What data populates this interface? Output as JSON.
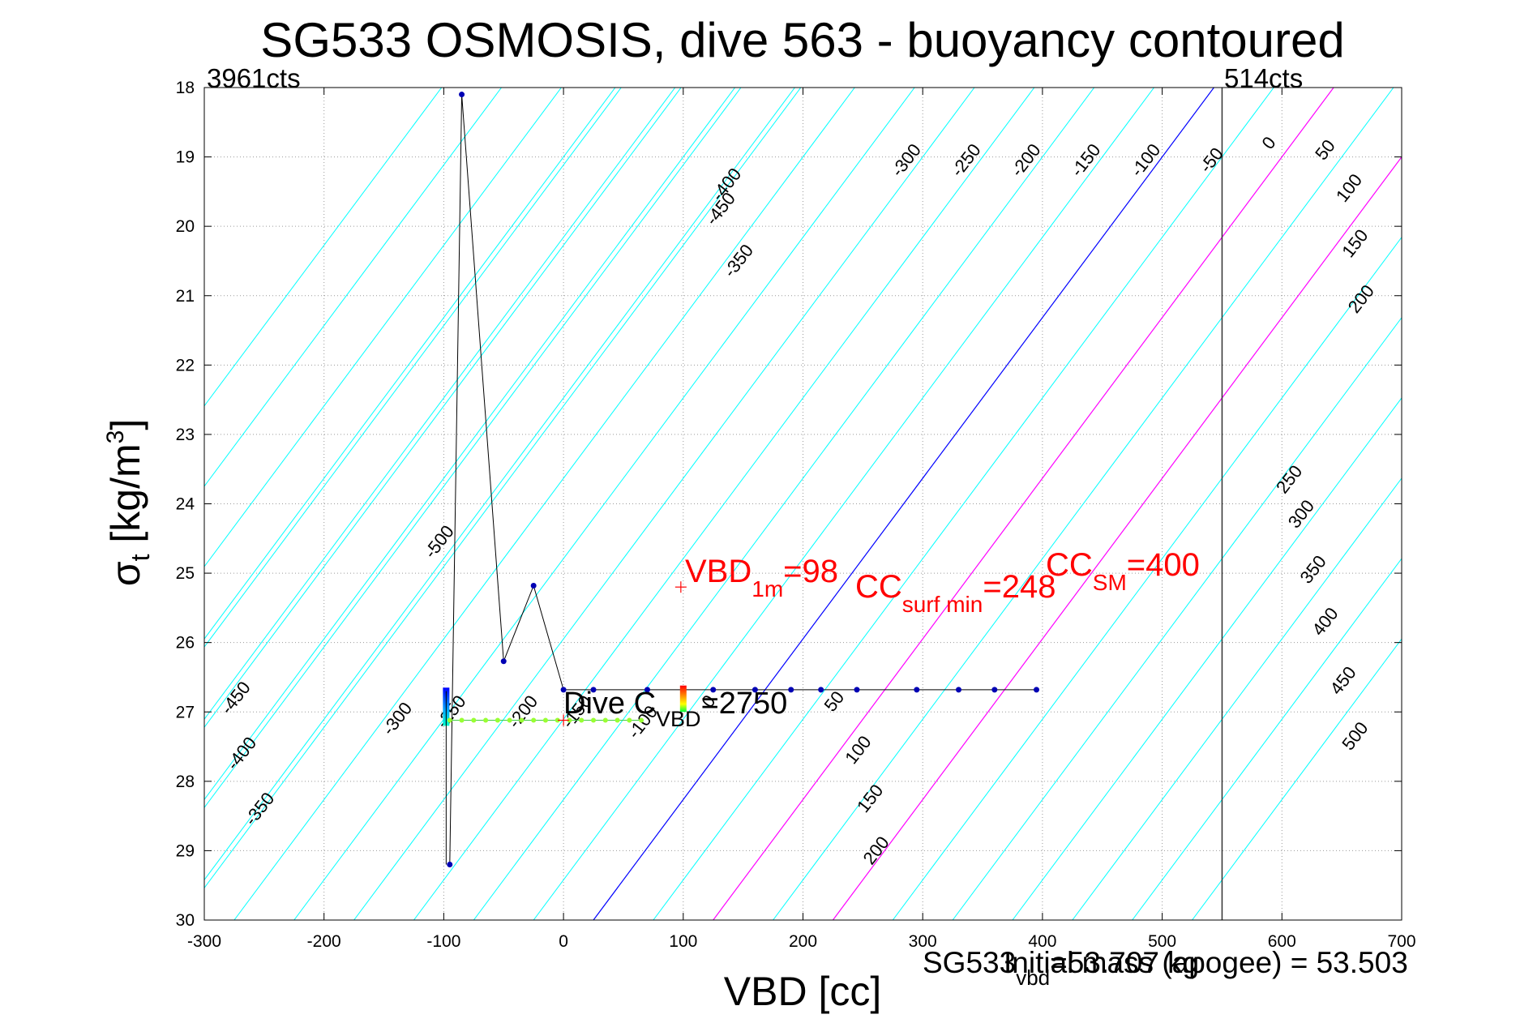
{
  "chart_data": {
    "type": "line",
    "title": "SG533 OSMOSIS, dive 563 - buoyancy contoured",
    "xlabel": "VBD [cc]",
    "ylabel_symbol": "σ",
    "ylabel_sub": "t",
    "ylabel_unit_pre": "[kg/m",
    "ylabel_unit_sup": "3",
    "ylabel_unit_post": "]",
    "xlim": [
      -300,
      700
    ],
    "ylim": [
      18,
      30
    ],
    "y_reversed": true,
    "grid": true,
    "x_ticks": [
      "-300",
      "-200",
      "-100",
      "0",
      "100",
      "200",
      "300",
      "400",
      "500",
      "600",
      "700"
    ],
    "y_ticks": [
      "18",
      "19",
      "20",
      "21",
      "22",
      "23",
      "24",
      "25",
      "26",
      "27",
      "28",
      "29",
      "30"
    ],
    "counts_left": "3961cts",
    "counts_right": "514cts",
    "counts_right_vbd": 550,
    "contour_colors": {
      "cyan": "#00ffff",
      "blue": "#0000ff",
      "magenta": "#ff00ff",
      "trace": "#000000",
      "points": "#0000b4",
      "red": "#ff0000"
    },
    "upper_contours": {
      "values": [
        -500,
        -450,
        -400,
        -350,
        -300,
        -250,
        -200,
        -150,
        -100,
        -50,
        0,
        50,
        100,
        150,
        200,
        250,
        300,
        350,
        400,
        450,
        500
      ],
      "labels": [
        {
          "text": "-450",
          "x": 135,
          "y": 19.8
        },
        {
          "text": "-400",
          "x": 140,
          "y": 19.45
        },
        {
          "text": "-350",
          "x": 150,
          "y": 20.55
        },
        {
          "text": "-300",
          "x": 290,
          "y": 19.1
        },
        {
          "text": "-250",
          "x": 340,
          "y": 19.1
        },
        {
          "text": "-200",
          "x": 390,
          "y": 19.1
        },
        {
          "text": "-150",
          "x": 440,
          "y": 19.1
        },
        {
          "text": "-100",
          "x": 490,
          "y": 19.1
        },
        {
          "text": "-50",
          "x": 545,
          "y": 19.1
        },
        {
          "text": "0",
          "x": 593,
          "y": 18.85
        },
        {
          "text": "50",
          "x": 640,
          "y": 18.95
        },
        {
          "text": "100",
          "x": 660,
          "y": 19.5
        },
        {
          "text": "150",
          "x": 665,
          "y": 20.3
        },
        {
          "text": "200",
          "x": 670,
          "y": 21.1
        },
        {
          "text": "250",
          "x": 610,
          "y": 23.7
        },
        {
          "text": "300",
          "x": 620,
          "y": 24.2
        },
        {
          "text": "350",
          "x": 630,
          "y": 25.0
        },
        {
          "text": "400",
          "x": 640,
          "y": 25.75
        },
        {
          "text": "450",
          "x": 655,
          "y": 26.6
        },
        {
          "text": "500",
          "x": 665,
          "y": 27.4
        },
        {
          "text": "-500",
          "x": -100,
          "y": 24.6
        }
      ]
    },
    "lower_contour_labels": [
      {
        "text": "-450",
        "x": -270,
        "y": 26.85
      },
      {
        "text": "-400",
        "x": -265,
        "y": 27.65
      },
      {
        "text": "-350",
        "x": -250,
        "y": 28.45
      },
      {
        "text": "-300",
        "x": -135,
        "y": 27.15
      },
      {
        "text": "-250",
        "x": -90,
        "y": 27.05
      },
      {
        "text": "-200",
        "x": -30,
        "y": 27.05
      },
      {
        "text": "-150",
        "x": 15,
        "y": 27.05
      },
      {
        "text": "-100",
        "x": 70,
        "y": 27.2
      },
      {
        "text": "0",
        "x": 125,
        "y": 26.9
      },
      {
        "text": "50",
        "x": 230,
        "y": 26.9
      },
      {
        "text": "100",
        "x": 250,
        "y": 27.6
      },
      {
        "text": "150",
        "x": 260,
        "y": 28.3
      },
      {
        "text": "200",
        "x": 265,
        "y": 29.05
      }
    ],
    "dive_trace": {
      "x": [
        -95,
        -85,
        -50,
        -25,
        0,
        25,
        70,
        100,
        125,
        160,
        190,
        215,
        245,
        295,
        330,
        360,
        395
      ],
      "y": [
        29.2,
        18.1,
        26.27,
        25.18,
        26.68,
        26.68,
        26.68,
        26.68,
        26.68,
        26.68,
        26.68,
        26.68,
        26.68,
        26.68,
        26.68,
        26.68,
        26.68
      ]
    },
    "descent_points": {
      "x": [
        -98,
        -98,
        -98,
        -98,
        -98,
        -98
      ],
      "y": [
        26.7,
        26.8,
        26.9,
        27.0,
        27.1,
        29.2
      ]
    },
    "green_track": {
      "x": [
        -95,
        -85,
        -75,
        -65,
        -55,
        -45,
        -35,
        -25,
        -15,
        -5,
        5,
        15,
        25,
        35,
        45,
        55,
        65
      ],
      "y": 27.12
    },
    "red_plus_left": {
      "x": 0,
      "y": 27.12
    },
    "red_plus_right": {
      "x": 98,
      "y": 25.2
    },
    "colored_bar_x": 100,
    "colored_bar_y": [
      26.62,
      27.0
    ],
    "annotations": {
      "vbd1m_pre": "VBD",
      "vbd1m_sub": "1m",
      "vbd1m_post": "=98",
      "cc_surf_pre": "CC",
      "cc_surf_sub": "surf min",
      "cc_surf_post": "=248",
      "cc_sm_pre": "CC",
      "cc_sm_sub": "SM",
      "cc_sm_post": "=400",
      "dive_c_pre": "Dive C",
      "dive_c_sub": "VBD",
      "dive_c_post": "=2750",
      "sg_mass_pre": "SG533",
      "sg_mass_sub": "vbd",
      "sg_mass_post": "=53.707 kg",
      "initial_mass": "Initial mass (apogee) = 53.503"
    }
  }
}
